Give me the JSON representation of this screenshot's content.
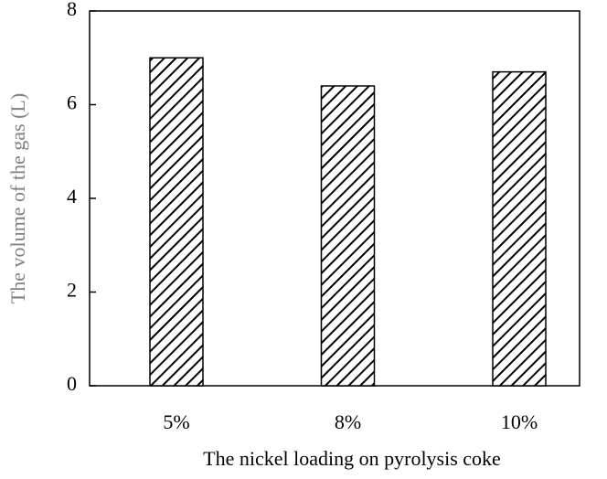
{
  "chart_data": {
    "type": "bar",
    "categories": [
      "5%",
      "8%",
      "10%"
    ],
    "values": [
      7.0,
      6.4,
      6.7
    ],
    "color": "#000000",
    "xlabel": "The nickel loading on pyrolysis coke",
    "ylabel": "The volume of the gas (L)",
    "ylim": [
      0,
      8
    ],
    "yticks": [
      0,
      2,
      4,
      6,
      8
    ],
    "grid": false
  }
}
